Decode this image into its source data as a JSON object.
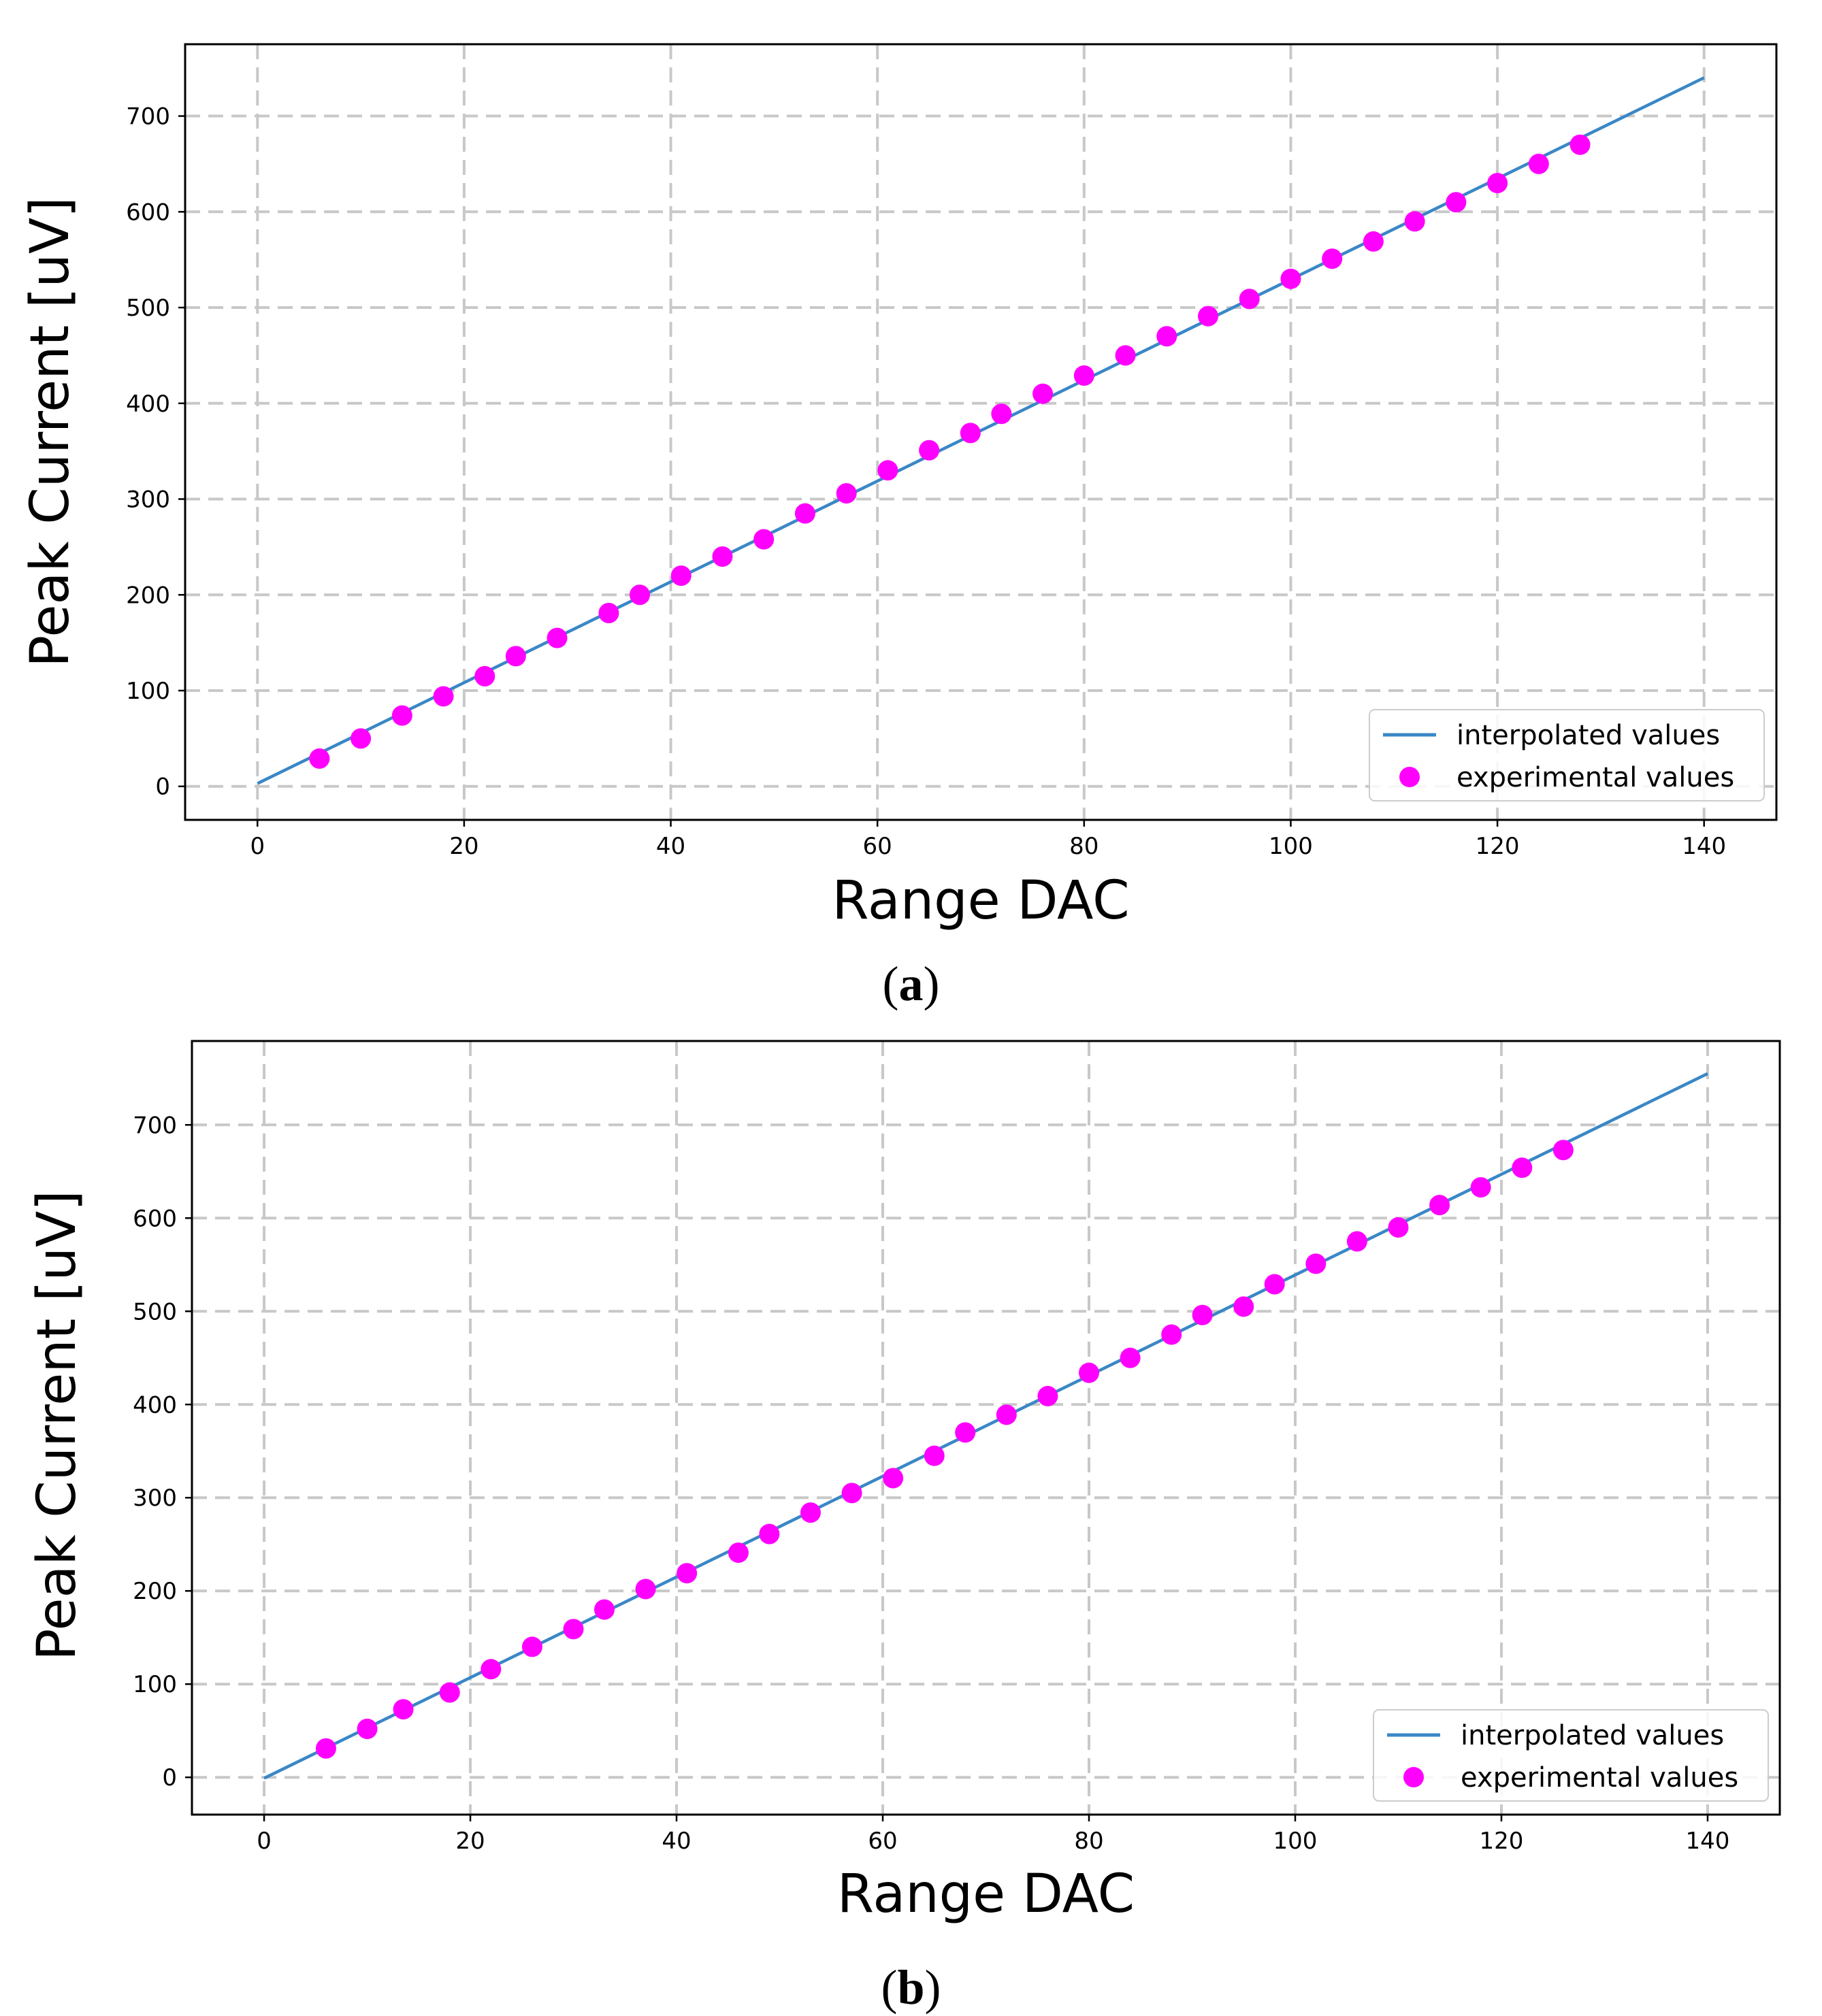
{
  "colors": {
    "line": "#3a87c6",
    "points": "#ff00ff",
    "grid": "#c8c8c8",
    "frame": "#000000"
  },
  "chart_data": [
    {
      "id": "a",
      "type": "scatter+line",
      "caption": "a",
      "xlabel": "Range DAC",
      "ylabel": "Peak Current [uV]",
      "xlim": [
        -7,
        147
      ],
      "ylim": [
        -35,
        775
      ],
      "xticks": [
        0,
        20,
        40,
        60,
        80,
        100,
        120,
        140
      ],
      "yticks": [
        0,
        100,
        200,
        300,
        400,
        500,
        600,
        700
      ],
      "grid": true,
      "legend_position": "lower-right",
      "legend": {
        "line": "interpolated values",
        "points": "experimental values"
      },
      "line": {
        "name": "interpolated values",
        "x": [
          0,
          140
        ],
        "y": [
          3,
          740
        ]
      },
      "points": {
        "name": "experimental values",
        "x": [
          6,
          10,
          14,
          18,
          22,
          25,
          29,
          34,
          37,
          41,
          45,
          49,
          53,
          57,
          61,
          65,
          69,
          72,
          76,
          80,
          84,
          88,
          92,
          96,
          100,
          104,
          108,
          112,
          116,
          120,
          124,
          128
        ],
        "y": [
          29,
          50,
          74,
          94,
          115,
          136,
          155,
          181,
          200,
          220,
          240,
          258,
          285,
          306,
          330,
          351,
          369,
          389,
          410,
          429,
          450,
          470,
          491,
          509,
          530,
          551,
          569,
          590,
          610,
          630,
          650,
          670
        ]
      }
    },
    {
      "id": "b",
      "type": "scatter+line",
      "caption": "b",
      "xlabel": "Range DAC",
      "ylabel": "Peak Current [uV]",
      "xlim": [
        -7,
        147
      ],
      "ylim": [
        -40,
        790
      ],
      "xticks": [
        0,
        20,
        40,
        60,
        80,
        100,
        120,
        140
      ],
      "yticks": [
        0,
        100,
        200,
        300,
        400,
        500,
        600,
        700
      ],
      "grid": true,
      "legend_position": "lower-right",
      "legend": {
        "line": "interpolated values",
        "points": "experimental values"
      },
      "line": {
        "name": "interpolated values",
        "x": [
          0,
          140
        ],
        "y": [
          -1,
          755
        ]
      },
      "points": {
        "name": "experimental values",
        "x": [
          6,
          10,
          13.5,
          18,
          22,
          26,
          30,
          33,
          37,
          41,
          46,
          49,
          53,
          57,
          61,
          65,
          68,
          72,
          76,
          80,
          84,
          88,
          91,
          95,
          98,
          102,
          106,
          110,
          114,
          118,
          122,
          126
        ],
        "y": [
          31,
          52,
          73,
          91,
          116,
          140,
          159,
          180,
          202,
          219,
          241,
          261,
          284,
          305,
          321,
          345,
          370,
          389,
          409,
          434,
          450,
          475,
          496,
          505,
          529,
          551,
          575,
          590,
          614,
          633,
          654,
          673
        ]
      }
    }
  ]
}
